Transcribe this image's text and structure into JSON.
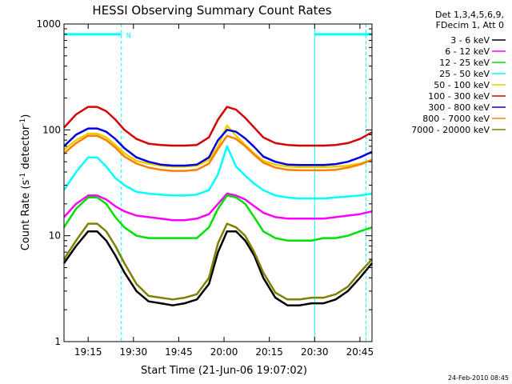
{
  "chart_data": {
    "type": "line",
    "title": "HESSI Observing Summary Count Rates",
    "xlabel": "Start Time (21-Jun-06 19:07:02)",
    "ylabel": "Count Rate (s",
    "ylabel_sup1": "-1",
    "ylabel_mid": " detector",
    "ylabel_sup2": "-1",
    "ylabel_end": ")",
    "x_unit": "minutes after 19:07:02",
    "xlim": [
      0,
      102
    ],
    "ylim": [
      1,
      1000
    ],
    "y_scale": "log",
    "grid": false,
    "legend_position": "right",
    "legend_header": [
      "Det 1,3,4,5,6,9,",
      "FDecim 1, Att 0"
    ],
    "x_ticks": [
      {
        "label": "19:15",
        "value": 8
      },
      {
        "label": "19:30",
        "value": 23
      },
      {
        "label": "19:45",
        "value": 38
      },
      {
        "label": "20:00",
        "value": 53
      },
      {
        "label": "20:15",
        "value": 68
      },
      {
        "label": "20:30",
        "value": 83
      },
      {
        "label": "20:45",
        "value": 98
      }
    ],
    "y_ticks": [
      {
        "label": "1",
        "value": 1
      },
      {
        "label": "10",
        "value": 10
      },
      {
        "label": "100",
        "value": 100
      },
      {
        "label": "1000",
        "value": 1000
      }
    ],
    "x": [
      0,
      4,
      8,
      11,
      14,
      17,
      20,
      24,
      28,
      32,
      36,
      40,
      44,
      48,
      51,
      54,
      57,
      60,
      63,
      66,
      70,
      74,
      78,
      82,
      86,
      90,
      94,
      98,
      102
    ],
    "series": [
      {
        "name": "3 - 6 keV",
        "color": "#000000",
        "values": [
          5.5,
          8,
          11,
          11,
          9,
          6.5,
          4.5,
          3,
          2.4,
          2.3,
          2.2,
          2.3,
          2.5,
          3.5,
          7,
          11,
          11,
          9,
          6.5,
          4,
          2.6,
          2.2,
          2.2,
          2.3,
          2.3,
          2.5,
          3,
          4,
          5.5
        ]
      },
      {
        "name": "6 - 12 keV",
        "color": "#ff00ff",
        "values": [
          15,
          20,
          24,
          24,
          22,
          19,
          17,
          15.5,
          15,
          14.5,
          14,
          14,
          14.5,
          16,
          20,
          25,
          24,
          22,
          19,
          16.5,
          15,
          14.5,
          14.5,
          14.5,
          14.5,
          15,
          15.5,
          16,
          17
        ]
      },
      {
        "name": "12 - 25 keV",
        "color": "#00e000",
        "values": [
          12,
          18,
          23,
          23,
          20,
          15,
          12,
          10,
          9.5,
          9.5,
          9.5,
          9.5,
          9.5,
          12,
          18,
          24,
          23,
          20,
          15,
          11,
          9.5,
          9,
          9,
          9,
          9.5,
          9.5,
          10,
          11,
          12
        ]
      },
      {
        "name": "25 - 50 keV",
        "color": "#00ffff",
        "values": [
          27,
          40,
          55,
          55,
          45,
          35,
          30,
          26,
          25,
          24.5,
          24,
          24,
          24.5,
          27,
          38,
          70,
          45,
          37,
          31,
          27,
          24,
          23,
          22.5,
          22.5,
          22.5,
          23,
          23.5,
          24,
          25
        ]
      },
      {
        "name": "50 - 100 keV",
        "color": "#e8d000",
        "values": [
          65,
          80,
          92,
          92,
          85,
          72,
          60,
          51,
          48,
          46,
          45,
          45,
          46,
          52,
          70,
          110,
          88,
          72,
          60,
          51,
          47,
          45,
          44.5,
          44.5,
          44.5,
          45,
          46,
          48,
          52
        ]
      },
      {
        "name": "100 - 300 keV",
        "color": "#d80000",
        "values": [
          105,
          140,
          165,
          165,
          150,
          125,
          100,
          82,
          74,
          72,
          71,
          71,
          72,
          85,
          125,
          165,
          155,
          130,
          105,
          85,
          75,
          72,
          71,
          71,
          71,
          72,
          75,
          82,
          95
        ]
      },
      {
        "name": "300 - 800 keV",
        "color": "#0000e0",
        "values": [
          70,
          90,
          103,
          103,
          96,
          82,
          67,
          55,
          50,
          47,
          46,
          46,
          47,
          55,
          80,
          100,
          96,
          83,
          69,
          56,
          50,
          47,
          46.5,
          46.5,
          46.5,
          47.5,
          50,
          55,
          62
        ]
      },
      {
        "name": "800 - 7000 keV",
        "color": "#ff8000",
        "values": [
          60,
          75,
          88,
          88,
          80,
          68,
          56,
          48,
          44,
          42,
          41,
          41,
          42,
          48,
          66,
          88,
          82,
          70,
          58,
          49,
          44,
          42,
          41.5,
          41.5,
          41.5,
          42,
          44,
          47,
          52
        ]
      },
      {
        "name": "7000 - 20000 keV",
        "color": "#808000",
        "values": [
          6,
          9,
          13,
          13,
          11,
          8,
          5.5,
          3.5,
          2.7,
          2.6,
          2.5,
          2.6,
          2.8,
          4,
          8.5,
          13,
          12,
          10,
          7,
          4.5,
          2.9,
          2.5,
          2.5,
          2.6,
          2.6,
          2.8,
          3.3,
          4.5,
          6
        ]
      }
    ],
    "vertical_lines": [
      {
        "x": 0,
        "style": "solid"
      },
      {
        "x": 19,
        "style": "dashed"
      },
      {
        "x": 83,
        "style": "solid"
      },
      {
        "x": 100,
        "style": "dashed"
      }
    ],
    "flag_bars": [
      {
        "x_start": 0,
        "x_end": 19,
        "value": 800,
        "label": "N"
      },
      {
        "x_start": 83,
        "x_end": 102,
        "value": 800,
        "label": ""
      }
    ],
    "accent_color": "#00ffff",
    "footer_date": "24-Feb-2010 08:45"
  }
}
